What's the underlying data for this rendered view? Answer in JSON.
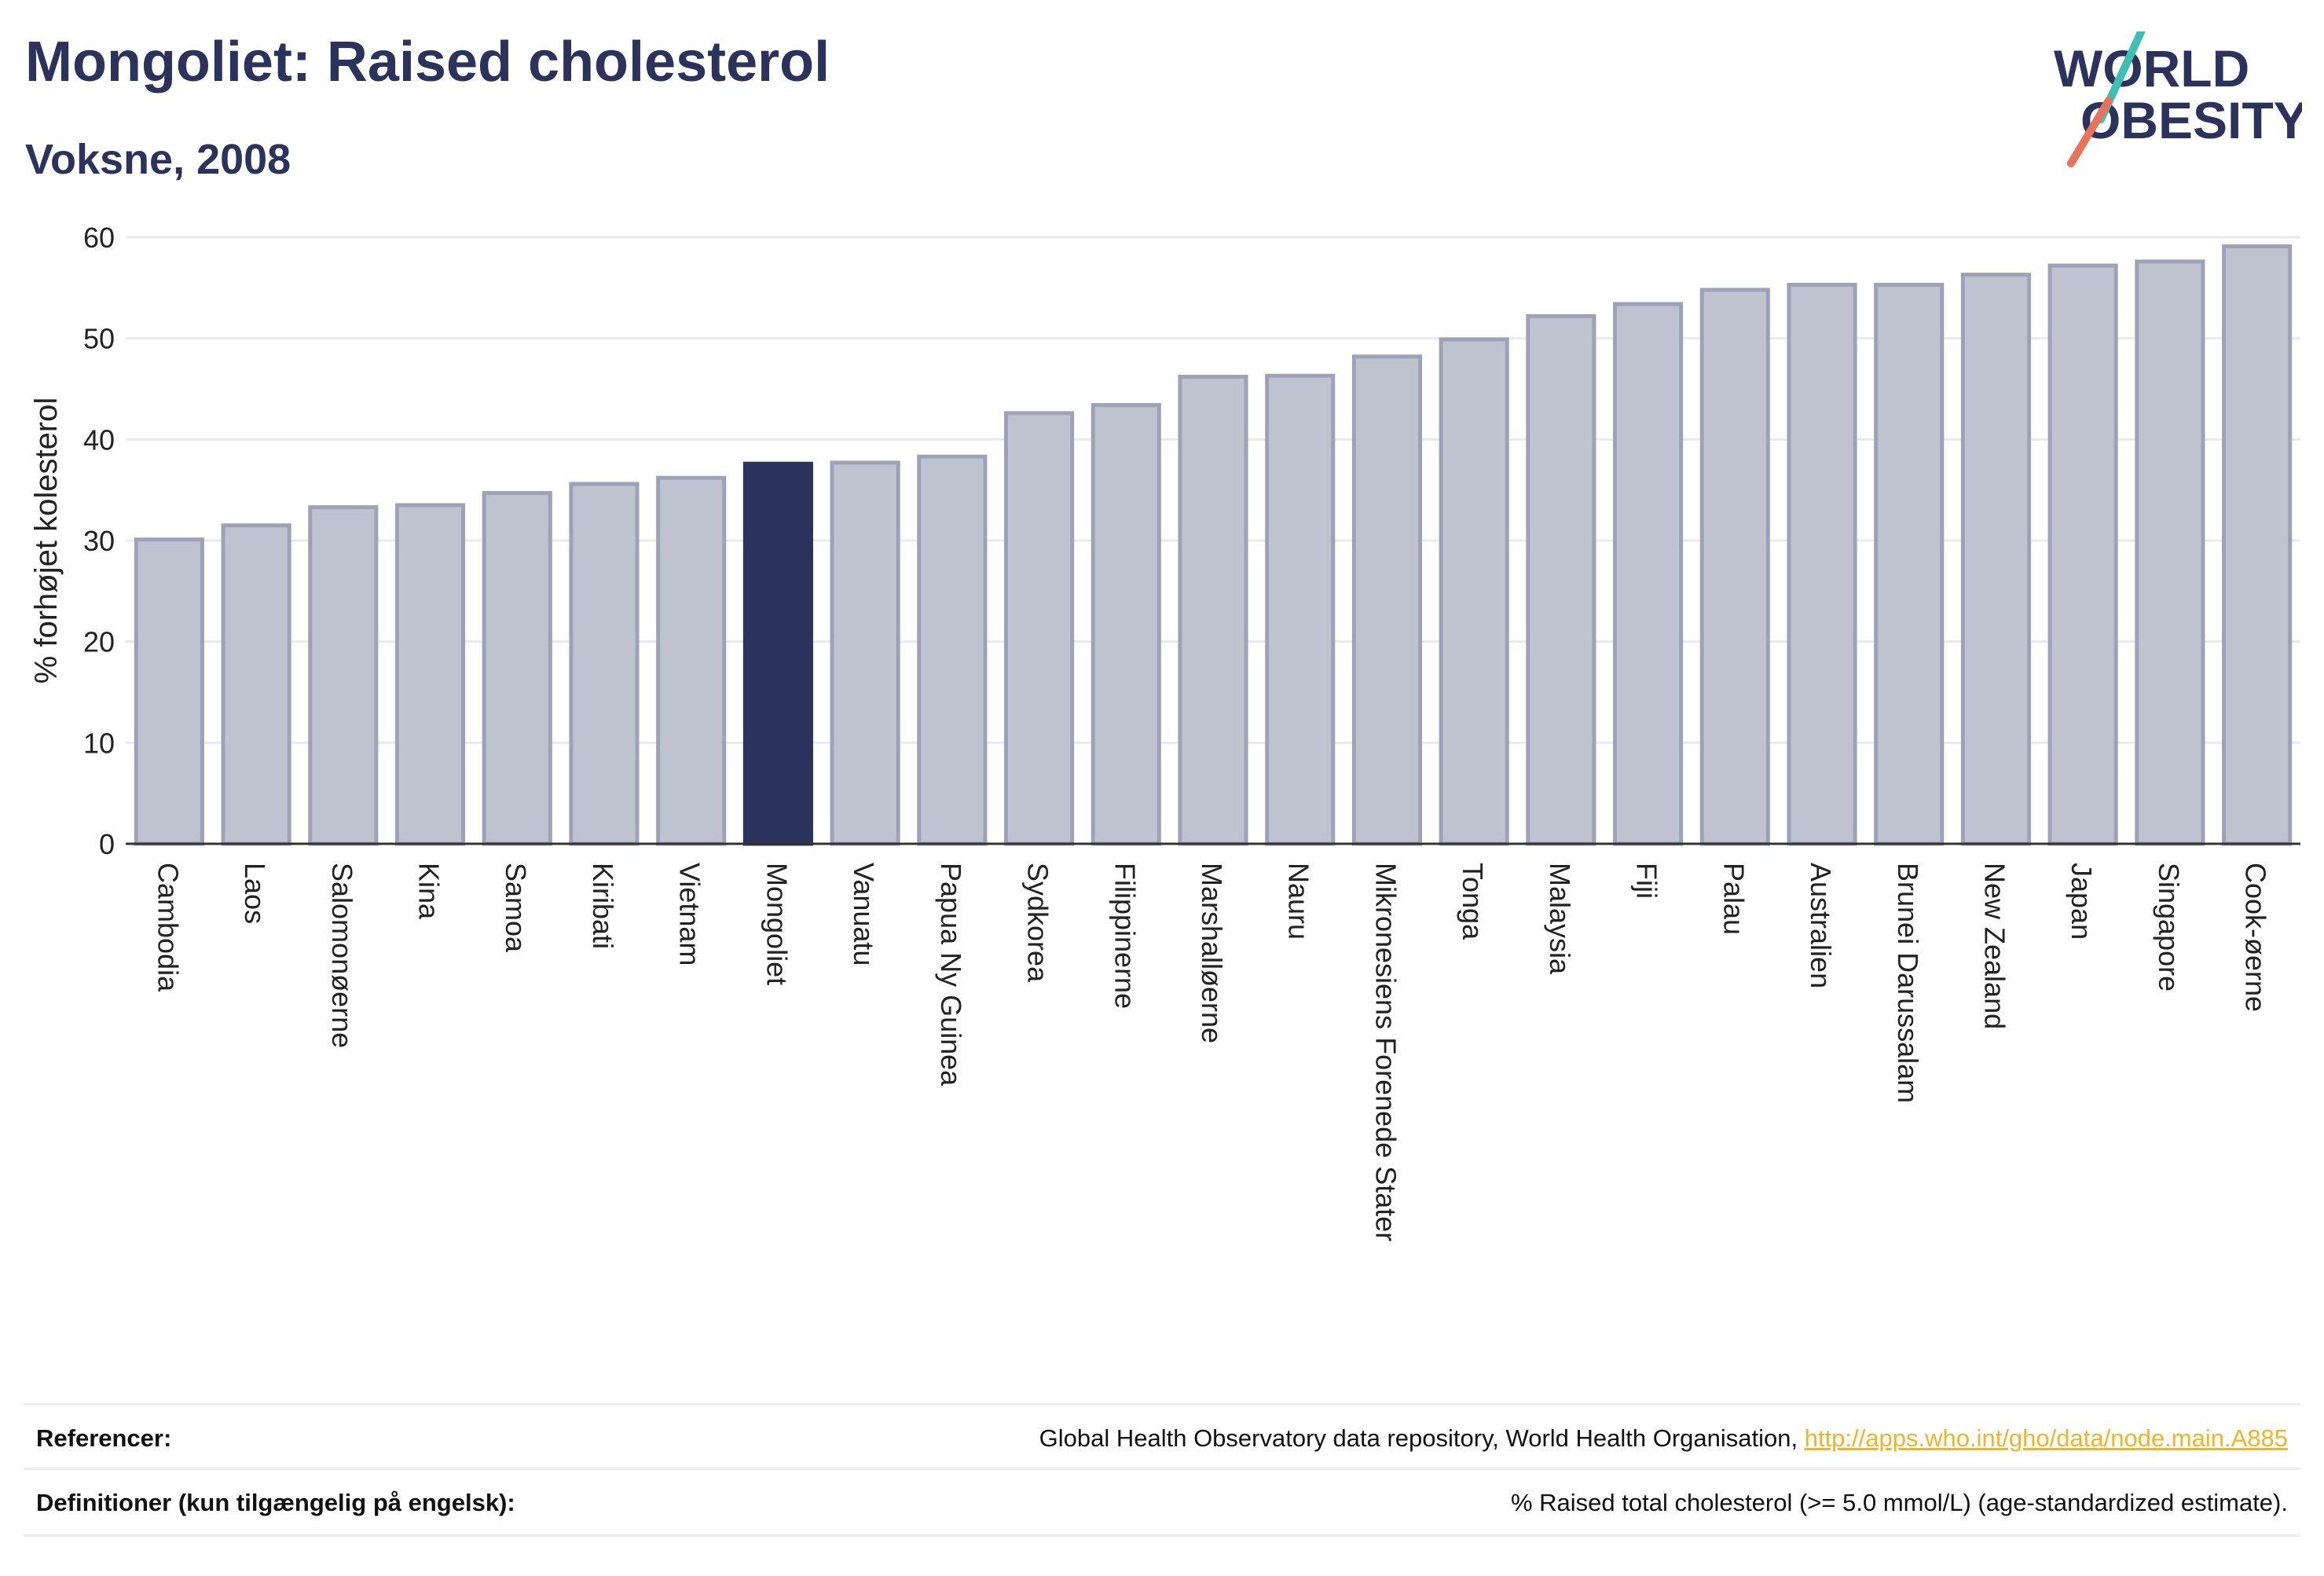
{
  "header": {
    "title": "Mongoliet: Raised cholesterol",
    "subtitle": "Voksne, 2008"
  },
  "logo": {
    "line1": "WORLD",
    "line2": "OBESITY"
  },
  "colors": {
    "highlight": "#2b335d",
    "bar_fill": "#bfc2cf",
    "bar_stroke": "#9da2b8",
    "accent_red": "#e8735a",
    "accent_teal": "#3fbfb4"
  },
  "chart_data": {
    "type": "bar",
    "title": "Mongoliet: Raised cholesterol",
    "subtitle": "Voksne, 2008",
    "ylabel": "% forhøjet kolesterol",
    "xlabel": "",
    "ylim": [
      0,
      60
    ],
    "yticks": [
      0,
      10,
      20,
      30,
      40,
      50,
      60
    ],
    "grid": true,
    "highlight": "Mongoliet",
    "categories": [
      "Cambodia",
      "Laos",
      "Salomonøerne",
      "Kina",
      "Samoa",
      "Kiribati",
      "Vietnam",
      "Mongoliet",
      "Vanuatu",
      "Papua Ny Guinea",
      "Sydkorea",
      "Filippinerne",
      "Marshalløerne",
      "Nauru",
      "Mikronesiens Forenede Stater",
      "Tonga",
      "Malaysia",
      "Fiji",
      "Palau",
      "Australien",
      "Brunei Darussalam",
      "New Zealand",
      "Japan",
      "Singapore",
      "Cook-øerne"
    ],
    "values": [
      30.1,
      31.5,
      33.3,
      33.5,
      34.7,
      35.6,
      36.2,
      37.6,
      37.7,
      38.3,
      42.6,
      43.4,
      46.2,
      46.3,
      48.2,
      49.9,
      52.2,
      53.4,
      54.8,
      55.3,
      55.3,
      56.3,
      57.2,
      57.6,
      59.1
    ]
  },
  "footer": {
    "references_label": "Referencer:",
    "references_text": "Global Health Observatory data repository, World Health Organisation, ",
    "references_link": "http://apps.who.int/gho/data/node.main.A885",
    "definitions_label": "Definitioner (kun tilgængelig på engelsk):",
    "definitions_text": "% Raised total cholesterol (>= 5.0 mmol/L) (age-standardized estimate)."
  }
}
